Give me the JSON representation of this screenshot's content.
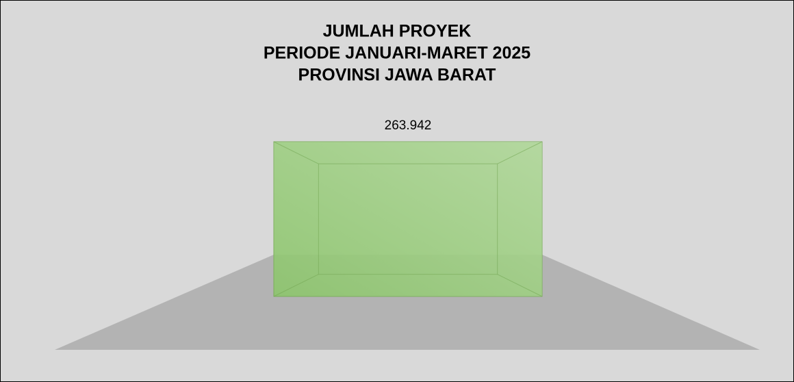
{
  "chart_data": {
    "type": "bar",
    "title": [
      "JUMLAH PROYEK",
      "PERIODE JANUARI-MARET 2025",
      "PROVINSI JAWA BARAT"
    ],
    "values": [
      263942
    ],
    "value_labels": [
      "263.942"
    ],
    "color": "#8cc46c"
  }
}
